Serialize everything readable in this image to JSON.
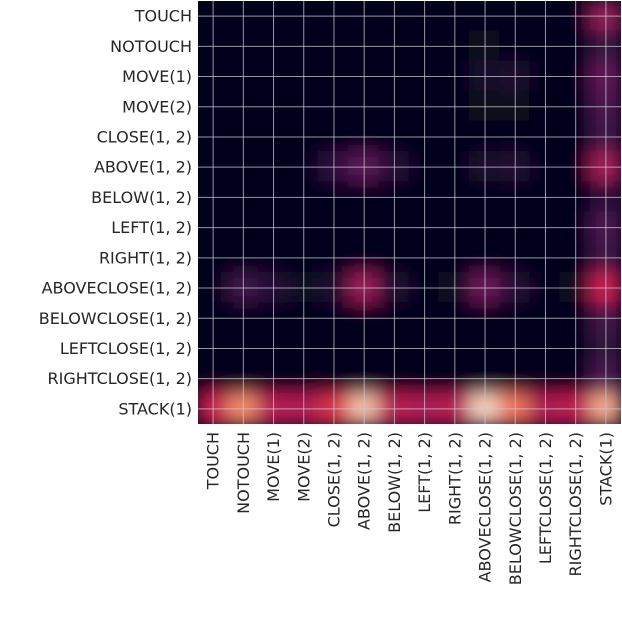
{
  "chart_data": {
    "type": "heatmap",
    "title": "",
    "xlabel": "",
    "ylabel": "",
    "x_labels": [
      "TOUCH",
      "NOTOUCH",
      "MOVE(1)",
      "MOVE(2)",
      "CLOSE(1, 2)",
      "ABOVE(1, 2)",
      "BELOW(1, 2)",
      "LEFT(1, 2)",
      "RIGHT(1, 2)",
      "ABOVECLOSE(1, 2)",
      "BELOWCLOSE(1, 2)",
      "LEFTCLOSE(1, 2)",
      "RIGHTCLOSE(1, 2)",
      "STACK(1)"
    ],
    "y_labels": [
      "TOUCH",
      "NOTOUCH",
      "MOVE(1)",
      "MOVE(2)",
      "CLOSE(1, 2)",
      "ABOVE(1, 2)",
      "BELOW(1, 2)",
      "LEFT(1, 2)",
      "RIGHT(1, 2)",
      "ABOVECLOSE(1, 2)",
      "BELOWCLOSE(1, 2)",
      "LEFTCLOSE(1, 2)",
      "RIGHTCLOSE(1, 2)",
      "STACK(1)"
    ],
    "values": [
      [
        0.0,
        0.0,
        0.0,
        0.0,
        0.0,
        0.0,
        0.0,
        0.0,
        0.0,
        0.0,
        0.0,
        0.0,
        0.0,
        0.4
      ],
      [
        0.0,
        0.0,
        0.0,
        0.0,
        0.0,
        0.0,
        0.0,
        0.0,
        0.0,
        0.02,
        0.0,
        0.0,
        0.0,
        0.15
      ],
      [
        0.0,
        0.0,
        0.0,
        0.0,
        0.0,
        0.0,
        0.0,
        0.0,
        0.0,
        0.06,
        0.08,
        0.0,
        0.0,
        0.28
      ],
      [
        0.0,
        0.0,
        0.0,
        0.0,
        0.0,
        0.0,
        0.0,
        0.0,
        0.0,
        0.02,
        0.02,
        0.0,
        0.0,
        0.22
      ],
      [
        0.0,
        0.0,
        0.0,
        0.0,
        0.0,
        0.0,
        0.0,
        0.0,
        0.0,
        0.0,
        0.0,
        0.0,
        0.0,
        0.18
      ],
      [
        0.0,
        0.0,
        0.0,
        0.0,
        0.14,
        0.26,
        0.12,
        0.0,
        0.0,
        0.08,
        0.1,
        0.0,
        0.0,
        0.45
      ],
      [
        0.0,
        0.0,
        0.0,
        0.0,
        0.0,
        0.0,
        0.0,
        0.0,
        0.0,
        0.0,
        0.0,
        0.0,
        0.0,
        0.12
      ],
      [
        0.0,
        0.0,
        0.0,
        0.0,
        0.0,
        0.0,
        0.0,
        0.0,
        0.0,
        0.0,
        0.0,
        0.0,
        0.0,
        0.22
      ],
      [
        0.0,
        0.0,
        0.0,
        0.0,
        0.0,
        0.0,
        0.0,
        0.0,
        0.0,
        0.0,
        0.0,
        0.0,
        0.0,
        0.18
      ],
      [
        0.0,
        0.18,
        0.12,
        0.04,
        0.08,
        0.42,
        0.1,
        0.0,
        0.04,
        0.3,
        0.12,
        0.0,
        0.04,
        0.55
      ],
      [
        0.0,
        0.0,
        0.0,
        0.0,
        0.0,
        0.0,
        0.0,
        0.0,
        0.0,
        0.0,
        0.0,
        0.0,
        0.0,
        0.2
      ],
      [
        0.0,
        0.0,
        0.0,
        0.0,
        0.0,
        0.0,
        0.0,
        0.0,
        0.0,
        0.0,
        0.0,
        0.0,
        0.0,
        0.15
      ],
      [
        0.0,
        0.0,
        0.0,
        0.0,
        0.0,
        0.0,
        0.0,
        0.0,
        0.0,
        0.0,
        0.0,
        0.0,
        0.0,
        0.22
      ],
      [
        0.55,
        0.82,
        0.5,
        0.48,
        0.62,
        0.92,
        0.52,
        0.48,
        0.5,
        0.95,
        0.78,
        0.48,
        0.52,
        0.88
      ]
    ],
    "grid": true,
    "legend": false
  }
}
